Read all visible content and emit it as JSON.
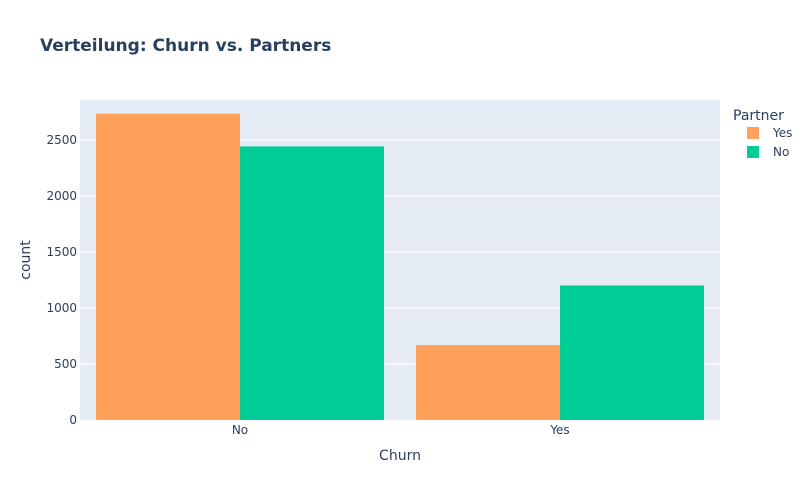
{
  "chart_data": {
    "type": "bar",
    "title": "Verteilung: Churn vs. Partners",
    "xlabel": "Churn",
    "ylabel": "count",
    "categories": [
      "No",
      "Yes"
    ],
    "series": [
      {
        "name": "Yes",
        "values": [
          2733,
          669
        ],
        "color": "#FFA15A"
      },
      {
        "name": "No",
        "values": [
          2441,
          1200
        ],
        "color": "#00CC96"
      }
    ],
    "ylim": [
      0,
      2855
    ],
    "yticks": [
      0,
      500,
      1000,
      1500,
      2000,
      2500
    ],
    "ytick_labels": [
      "0",
      "500",
      "1000",
      "1500",
      "2000",
      "2500"
    ],
    "legend_title": "Partner",
    "legend_position": "top-right",
    "grid": true,
    "plot_background": "#E5ECF6"
  }
}
